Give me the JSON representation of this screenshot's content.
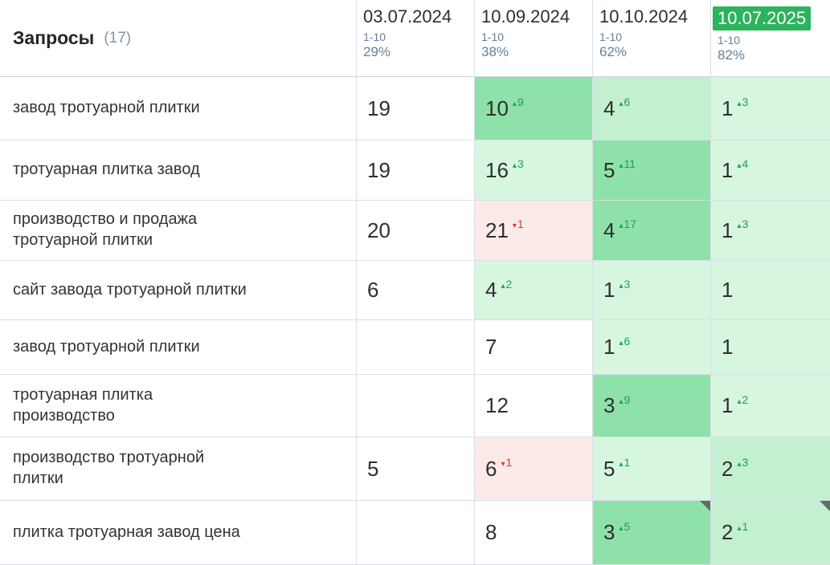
{
  "header": {
    "title": "Запросы",
    "count": "(17)",
    "columns": [
      {
        "date": "03.07.2024",
        "range": "1-10",
        "percent": "29%",
        "highlight": false
      },
      {
        "date": "10.09.2024",
        "range": "1-10",
        "percent": "38%",
        "highlight": false
      },
      {
        "date": "10.10.2024",
        "range": "1-10",
        "percent": "62%",
        "highlight": false
      },
      {
        "date": "10.07.2025",
        "range": "1-10",
        "percent": "82%",
        "highlight": true
      }
    ]
  },
  "icons": {
    "up_arrow": "▴",
    "down_arrow": "▾"
  },
  "colors": {
    "white": "#ffffff",
    "bright": "#8ee1a8",
    "mid": "#c3f0d0",
    "light": "#d6f6e0",
    "pink": "#fbeae8",
    "date_highlight_bg": "#2cb45c",
    "delta_up": "#1ea05b",
    "delta_down": "#e23727",
    "corner_flag": "#5e6e65"
  },
  "rows": [
    {
      "keyword": "завод тротуарной плитки",
      "cells": [
        {
          "value": "19",
          "bg": "white"
        },
        {
          "value": "10",
          "delta": "9",
          "dir": "up",
          "bg": "bright"
        },
        {
          "value": "4",
          "delta": "6",
          "dir": "up",
          "bg": "mid"
        },
        {
          "value": "1",
          "delta": "3",
          "dir": "up",
          "bg": "light"
        }
      ]
    },
    {
      "keyword": "тротуарная плитка завод",
      "cells": [
        {
          "value": "19",
          "bg": "white"
        },
        {
          "value": "16",
          "delta": "3",
          "dir": "up",
          "bg": "light"
        },
        {
          "value": "5",
          "delta": "11",
          "dir": "up",
          "bg": "bright"
        },
        {
          "value": "1",
          "delta": "4",
          "dir": "up",
          "bg": "light"
        }
      ]
    },
    {
      "keyword": "производство и продажа тротуарной плитки",
      "cells": [
        {
          "value": "20",
          "bg": "white"
        },
        {
          "value": "21",
          "delta": "1",
          "dir": "down",
          "bg": "pink"
        },
        {
          "value": "4",
          "delta": "17",
          "dir": "up",
          "bg": "bright"
        },
        {
          "value": "1",
          "delta": "3",
          "dir": "up",
          "bg": "light"
        }
      ]
    },
    {
      "keyword": "сайт завода тротуарной плитки",
      "cells": [
        {
          "value": "6",
          "bg": "white"
        },
        {
          "value": "4",
          "delta": "2",
          "dir": "up",
          "bg": "light"
        },
        {
          "value": "1",
          "delta": "3",
          "dir": "up",
          "bg": "light"
        },
        {
          "value": "1",
          "bg": "light"
        }
      ]
    },
    {
      "keyword": "завод тротуарной плитки",
      "cells": [
        {
          "value": "",
          "bg": "white"
        },
        {
          "value": "7",
          "bg": "white"
        },
        {
          "value": "1",
          "delta": "6",
          "dir": "up",
          "bg": "light"
        },
        {
          "value": "1",
          "bg": "light"
        }
      ]
    },
    {
      "keyword": "тротуарная плитка производство",
      "cells": [
        {
          "value": "",
          "bg": "white"
        },
        {
          "value": "12",
          "bg": "white"
        },
        {
          "value": "3",
          "delta": "9",
          "dir": "up",
          "bg": "bright"
        },
        {
          "value": "1",
          "delta": "2",
          "dir": "up",
          "bg": "light"
        }
      ]
    },
    {
      "keyword": "производство тротуарной плитки",
      "cells": [
        {
          "value": "5",
          "bg": "white"
        },
        {
          "value": "6",
          "delta": "1",
          "dir": "down",
          "bg": "pink"
        },
        {
          "value": "5",
          "delta": "1",
          "dir": "up",
          "bg": "light"
        },
        {
          "value": "2",
          "delta": "3",
          "dir": "up",
          "bg": "mid"
        }
      ]
    },
    {
      "keyword": "плитка тротуарная завод цена",
      "cells": [
        {
          "value": "",
          "bg": "white"
        },
        {
          "value": "8",
          "bg": "white"
        },
        {
          "value": "3",
          "delta": "5",
          "dir": "up",
          "bg": "bright",
          "corner": true
        },
        {
          "value": "2",
          "delta": "1",
          "dir": "up",
          "bg": "mid",
          "corner": true
        }
      ]
    }
  ]
}
